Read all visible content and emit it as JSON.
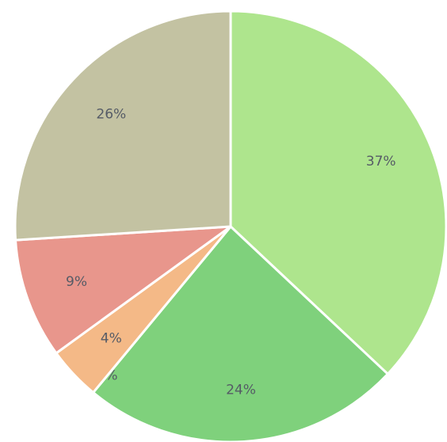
{
  "chart_data": {
    "type": "pie",
    "title": "",
    "start": "12 o'clock",
    "direction": "clockwise",
    "slices": [
      {
        "label": "37%",
        "value": 37,
        "color": "#aee58d"
      },
      {
        "label": "24%",
        "value": 24,
        "color": "#7fd17c"
      },
      {
        "label": "0%",
        "value": 0,
        "color": "#8fd67a"
      },
      {
        "label": "4%",
        "value": 4,
        "color": "#f4b987"
      },
      {
        "label": "9%",
        "value": 9,
        "color": "#e8968c"
      },
      {
        "label": "26%",
        "value": 26,
        "color": "#c3c2a2"
      }
    ]
  }
}
